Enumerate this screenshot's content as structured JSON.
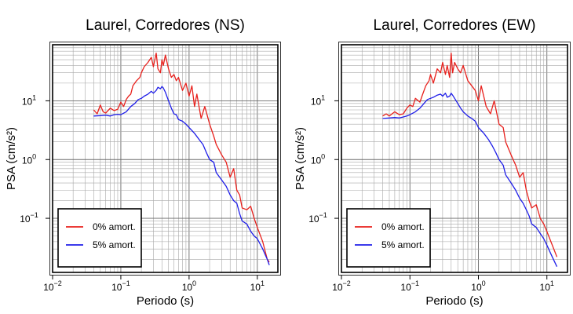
{
  "chart_data": [
    {
      "type": "line",
      "title": "Laurel, Corredores (NS)",
      "xlabel": "Periodo (s)",
      "ylabel": "PSA (cm/s²)",
      "xscale": "log",
      "yscale": "log",
      "xlim": [
        0.01,
        20
      ],
      "ylim": [
        0.012,
        90
      ],
      "grid": true,
      "legend_position": "bottom-left",
      "x_ticks": [
        {
          "base": "10",
          "exp": "−2",
          "value": 0.01
        },
        {
          "base": "10",
          "exp": "−1",
          "value": 0.1
        },
        {
          "base": "10",
          "exp": "0",
          "value": 1
        },
        {
          "base": "10",
          "exp": "1",
          "value": 10
        }
      ],
      "y_ticks": [
        {
          "base": "10",
          "exp": "−1",
          "value": 0.1
        },
        {
          "base": "10",
          "exp": "0",
          "value": 1
        },
        {
          "base": "10",
          "exp": "1",
          "value": 10
        }
      ],
      "series": [
        {
          "name": "0% amort.",
          "color": "#e8201c",
          "x": [
            0.04,
            0.045,
            0.05,
            0.055,
            0.06,
            0.07,
            0.08,
            0.09,
            0.1,
            0.11,
            0.12,
            0.13,
            0.14,
            0.15,
            0.17,
            0.19,
            0.2,
            0.22,
            0.25,
            0.28,
            0.3,
            0.33,
            0.35,
            0.38,
            0.4,
            0.42,
            0.45,
            0.5,
            0.55,
            0.6,
            0.65,
            0.7,
            0.8,
            0.9,
            1.0,
            1.1,
            1.2,
            1.3,
            1.5,
            1.7,
            2.0,
            2.3,
            2.5,
            3.0,
            3.5,
            4.0,
            4.5,
            5.0,
            5.5,
            6.0,
            7.0,
            8.0,
            9.0,
            10.0,
            12.0,
            14.0,
            15.0
          ],
          "y": [
            7.0,
            6.0,
            8.5,
            6.5,
            6.2,
            7.5,
            6.8,
            7.2,
            9.5,
            8.0,
            10.5,
            12.0,
            13.0,
            18.0,
            22.0,
            25.0,
            30.0,
            38.0,
            45.0,
            55.0,
            38.0,
            65.0,
            35.0,
            30.0,
            50.0,
            40.0,
            60.0,
            35.0,
            25.0,
            28.0,
            22.0,
            25.0,
            15.0,
            20.0,
            12.0,
            18.0,
            8.0,
            13.0,
            5.0,
            8.0,
            4.0,
            2.5,
            1.8,
            1.2,
            0.9,
            0.5,
            0.7,
            0.3,
            0.25,
            0.15,
            0.14,
            0.16,
            0.1,
            0.07,
            0.04,
            0.02,
            0.018
          ]
        },
        {
          "name": "5% amort.",
          "color": "#1f1ee8",
          "x": [
            0.04,
            0.05,
            0.06,
            0.07,
            0.08,
            0.09,
            0.1,
            0.12,
            0.14,
            0.16,
            0.18,
            0.2,
            0.22,
            0.25,
            0.28,
            0.3,
            0.33,
            0.35,
            0.38,
            0.4,
            0.42,
            0.45,
            0.5,
            0.55,
            0.6,
            0.65,
            0.7,
            0.8,
            0.9,
            1.0,
            1.2,
            1.4,
            1.6,
            1.8,
            2.0,
            2.3,
            2.5,
            3.0,
            3.5,
            4.0,
            4.5,
            5.0,
            5.5,
            6.0,
            7.0,
            8.0,
            9.0,
            10.0,
            12.0,
            14.0,
            15.0
          ],
          "y": [
            5.5,
            5.6,
            5.7,
            5.5,
            5.8,
            5.9,
            5.8,
            6.5,
            8.0,
            9.0,
            10.5,
            11.0,
            12.0,
            13.0,
            14.5,
            13.5,
            15.0,
            17.0,
            16.0,
            17.5,
            16.5,
            14.0,
            10.0,
            7.5,
            6.0,
            5.8,
            4.8,
            4.5,
            4.0,
            3.5,
            2.8,
            2.2,
            1.8,
            1.3,
            1.0,
            0.9,
            0.6,
            0.45,
            0.35,
            0.25,
            0.2,
            0.18,
            0.12,
            0.09,
            0.08,
            0.06,
            0.05,
            0.045,
            0.03,
            0.02,
            0.016
          ]
        }
      ]
    },
    {
      "type": "line",
      "title": "Laurel, Corredores (EW)",
      "xlabel": "Periodo (s)",
      "ylabel": "PSA (cm/s²)",
      "xscale": "log",
      "yscale": "log",
      "xlim": [
        0.01,
        20
      ],
      "ylim": [
        0.012,
        90
      ],
      "grid": true,
      "legend_position": "bottom-left",
      "x_ticks": [
        {
          "base": "10",
          "exp": "−2",
          "value": 0.01
        },
        {
          "base": "10",
          "exp": "−1",
          "value": 0.1
        },
        {
          "base": "10",
          "exp": "0",
          "value": 1
        },
        {
          "base": "10",
          "exp": "1",
          "value": 10
        }
      ],
      "y_ticks": [
        {
          "base": "10",
          "exp": "−1",
          "value": 0.1
        },
        {
          "base": "10",
          "exp": "0",
          "value": 1
        },
        {
          "base": "10",
          "exp": "1",
          "value": 10
        }
      ],
      "series": [
        {
          "name": "0% amort.",
          "color": "#e8201c",
          "x": [
            0.04,
            0.045,
            0.05,
            0.06,
            0.07,
            0.08,
            0.09,
            0.1,
            0.11,
            0.12,
            0.14,
            0.15,
            0.17,
            0.19,
            0.2,
            0.22,
            0.25,
            0.28,
            0.3,
            0.33,
            0.35,
            0.38,
            0.4,
            0.42,
            0.45,
            0.5,
            0.55,
            0.6,
            0.7,
            0.8,
            0.9,
            1.0,
            1.1,
            1.3,
            1.5,
            1.7,
            2.0,
            2.3,
            2.5,
            3.0,
            3.5,
            4.0,
            4.5,
            5.0,
            5.5,
            6.0,
            7.0,
            8.0,
            9.0,
            10.0,
            12.0,
            14.0
          ],
          "y": [
            5.5,
            6.0,
            5.5,
            6.5,
            5.8,
            6.0,
            7.5,
            8.5,
            8.0,
            11.0,
            9.5,
            12.0,
            18.0,
            22.0,
            28.0,
            20.0,
            35.0,
            30.0,
            45.0,
            28.0,
            40.0,
            25.0,
            65.0,
            30.0,
            45.0,
            35.0,
            30.0,
            40.0,
            22.0,
            18.0,
            15.0,
            10.0,
            18.0,
            8.0,
            6.0,
            10.0,
            4.0,
            3.5,
            2.0,
            1.2,
            0.8,
            0.5,
            0.6,
            0.3,
            0.2,
            0.15,
            0.17,
            0.1,
            0.08,
            0.06,
            0.035,
            0.022
          ]
        },
        {
          "name": "5% amort.",
          "color": "#1f1ee8",
          "x": [
            0.04,
            0.05,
            0.06,
            0.07,
            0.08,
            0.09,
            0.1,
            0.12,
            0.14,
            0.16,
            0.18,
            0.2,
            0.22,
            0.25,
            0.28,
            0.3,
            0.33,
            0.35,
            0.38,
            0.4,
            0.42,
            0.45,
            0.5,
            0.55,
            0.6,
            0.7,
            0.8,
            0.9,
            1.0,
            1.2,
            1.4,
            1.6,
            1.8,
            2.0,
            2.3,
            2.5,
            3.0,
            3.5,
            4.0,
            4.5,
            5.0,
            5.5,
            6.0,
            7.0,
            8.0,
            9.0,
            10.0,
            12.0,
            14.0
          ],
          "y": [
            5.0,
            5.1,
            5.2,
            5.1,
            5.3,
            5.5,
            5.8,
            6.5,
            7.5,
            9.0,
            10.5,
            11.0,
            11.5,
            12.5,
            13.0,
            12.0,
            13.5,
            11.5,
            12.0,
            13.5,
            12.5,
            11.0,
            9.0,
            7.5,
            6.5,
            5.5,
            5.0,
            4.5,
            3.5,
            2.8,
            2.2,
            1.7,
            1.3,
            1.0,
            0.8,
            0.55,
            0.4,
            0.3,
            0.22,
            0.18,
            0.14,
            0.11,
            0.08,
            0.07,
            0.055,
            0.045,
            0.035,
            0.022,
            0.015
          ]
        }
      ]
    }
  ]
}
